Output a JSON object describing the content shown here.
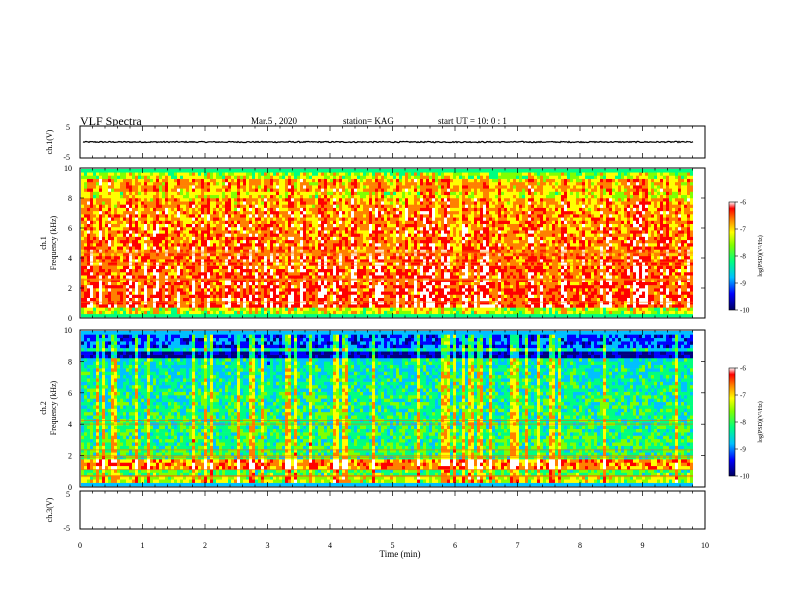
{
  "header": {
    "title": "VLF Spectra",
    "date": "Mar.5  , 2020",
    "station": "station= KAG",
    "start_ut": "start  UT =   10: 0  : 1"
  },
  "chart_data": [
    {
      "type": "line",
      "panel": "ch1-waveform",
      "ylabel": "ch.1(V)",
      "ylim": [
        -5,
        5
      ],
      "yticks": [
        "5",
        "-5"
      ],
      "series": [
        {
          "values": [
            0,
            0
          ]
        }
      ]
    },
    {
      "type": "heatmap",
      "panel": "ch1-spectrogram",
      "ylabel_line1": "ch.1",
      "ylabel_line2": "Frequency (kHz)",
      "ylim": [
        0,
        10
      ],
      "yticks": [
        "0",
        "2",
        "4",
        "6",
        "8",
        "10"
      ],
      "intensity": "high",
      "colorbar": {
        "label": "log(PSD)(V²/Hz)",
        "range": [
          -10,
          -6
        ],
        "ticks": [
          "-6",
          "-7",
          "-8",
          "-9",
          "-10"
        ]
      }
    },
    {
      "type": "heatmap",
      "panel": "ch2-spectrogram",
      "ylabel_line1": "ch.2",
      "ylabel_line2": "Frequency (kHz)",
      "ylim": [
        0,
        10
      ],
      "yticks": [
        "0",
        "2",
        "4",
        "6",
        "8",
        "10"
      ],
      "intensity": "low",
      "colorbar": {
        "label": "log(PSD)(V²/Hz)",
        "range": [
          -10,
          -6
        ],
        "ticks": [
          "-6",
          "-7",
          "-8",
          "-9",
          "-10"
        ]
      }
    },
    {
      "type": "line",
      "panel": "ch3-waveform",
      "ylabel": "ch.3(V)",
      "ylim": [
        -5,
        5
      ],
      "yticks": [
        "5",
        "-5"
      ],
      "series": []
    }
  ],
  "x_axis": {
    "label": "Time  (min)",
    "xlim": [
      0,
      10
    ],
    "ticks": [
      "0",
      "1",
      "2",
      "3",
      "4",
      "5",
      "6",
      "7",
      "8",
      "9",
      "10"
    ]
  },
  "colors": {
    "scale": [
      "#000080",
      "#0000ff",
      "#00c0ff",
      "#00ff80",
      "#80ff00",
      "#ffff00",
      "#ff8000",
      "#ff0000",
      "#ffffff"
    ]
  }
}
